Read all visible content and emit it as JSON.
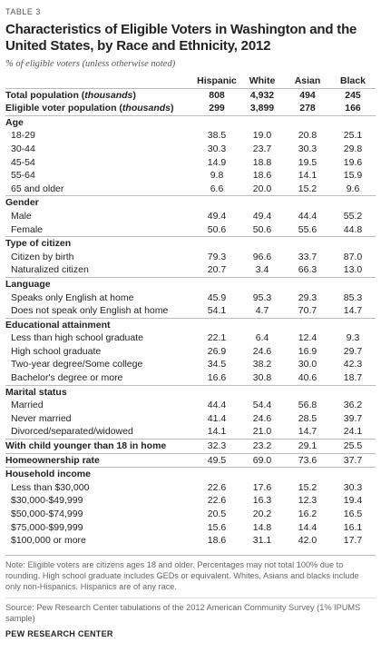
{
  "table_label": "TABLE 3",
  "title": "Characteristics of Eligible Voters in Washington and the United States, by Race and Ethnicity, 2012",
  "subtitle": "% of eligible voters (unless otherwise noted)",
  "columns": [
    "Hispanic",
    "White",
    "Asian",
    "Black"
  ],
  "top_rows": [
    {
      "label_pre": "Total population (",
      "label_em": "thousands",
      "label_post": ")",
      "values": [
        "808",
        "4,932",
        "494",
        "245"
      ]
    },
    {
      "label_pre": "Eligible voter population (",
      "label_em": "thousands",
      "label_post": ")",
      "values": [
        "299",
        "3,899",
        "278",
        "166"
      ]
    }
  ],
  "sections": [
    {
      "title": "Age",
      "rows": [
        {
          "label": "18-29",
          "values": [
            "38.5",
            "19.0",
            "20.8",
            "25.1"
          ]
        },
        {
          "label": "30-44",
          "values": [
            "30.3",
            "23.7",
            "30.3",
            "29.8"
          ]
        },
        {
          "label": "45-54",
          "values": [
            "14.9",
            "18.8",
            "19.5",
            "19.6"
          ]
        },
        {
          "label": "55-64",
          "values": [
            "9.8",
            "18.6",
            "14.1",
            "15.9"
          ]
        },
        {
          "label": "65 and older",
          "values": [
            "6.6",
            "20.0",
            "15.2",
            "9.6"
          ]
        }
      ]
    },
    {
      "title": "Gender",
      "rows": [
        {
          "label": "Male",
          "values": [
            "49.4",
            "49.4",
            "44.4",
            "55.2"
          ]
        },
        {
          "label": "Female",
          "values": [
            "50.6",
            "50.6",
            "55.6",
            "44.8"
          ]
        }
      ]
    },
    {
      "title": "Type of citizen",
      "rows": [
        {
          "label": "Citizen by birth",
          "values": [
            "79.3",
            "96.6",
            "33.7",
            "87.0"
          ]
        },
        {
          "label": "Naturalized citizen",
          "values": [
            "20.7",
            "3.4",
            "66.3",
            "13.0"
          ]
        }
      ]
    },
    {
      "title": "Language",
      "rows": [
        {
          "label": "Speaks only English at home",
          "values": [
            "45.9",
            "95.3",
            "29.3",
            "85.3"
          ]
        },
        {
          "label": "Does not speak only English at home",
          "values": [
            "54.1",
            "4.7",
            "70.7",
            "14.7"
          ]
        }
      ]
    },
    {
      "title": "Educational attainment",
      "rows": [
        {
          "label": "Less than high school graduate",
          "values": [
            "22.1",
            "6.4",
            "12.4",
            "9.3"
          ]
        },
        {
          "label": "High school graduate",
          "values": [
            "26.9",
            "24.6",
            "16.9",
            "29.7"
          ]
        },
        {
          "label": "Two-year degree/Some college",
          "values": [
            "34.5",
            "38.2",
            "30.0",
            "42.3"
          ]
        },
        {
          "label": "Bachelor's degree or more",
          "values": [
            "16.6",
            "30.8",
            "40.6",
            "18.7"
          ]
        }
      ]
    },
    {
      "title": "Marital status",
      "rows": [
        {
          "label": "Married",
          "values": [
            "44.4",
            "54.4",
            "56.8",
            "36.2"
          ]
        },
        {
          "label": "Never married",
          "values": [
            "41.4",
            "24.6",
            "28.5",
            "39.7"
          ]
        },
        {
          "label": "Divorced/separated/widowed",
          "values": [
            "14.1",
            "21.0",
            "14.7",
            "24.1"
          ]
        }
      ]
    }
  ],
  "standalone_rows": [
    {
      "label": "With child younger than 18 in home",
      "values": [
        "32.3",
        "23.2",
        "29.1",
        "25.5"
      ]
    },
    {
      "label": "Homeownership rate",
      "values": [
        "49.5",
        "69.0",
        "73.6",
        "37.7"
      ]
    }
  ],
  "income_section": {
    "title": "Household income",
    "rows": [
      {
        "label": "Less than $30,000",
        "values": [
          "22.6",
          "17.6",
          "15.2",
          "30.3"
        ]
      },
      {
        "label": "$30,000-$49,999",
        "values": [
          "22.6",
          "16.3",
          "12.3",
          "19.4"
        ]
      },
      {
        "label": "$50,000-$74,999",
        "values": [
          "20.5",
          "20.2",
          "16.2",
          "16.5"
        ]
      },
      {
        "label": "$75,000-$99,999",
        "values": [
          "15.6",
          "14.8",
          "14.4",
          "16.1"
        ]
      },
      {
        "label": "$100,000 or more",
        "values": [
          "18.6",
          "31.1",
          "42.0",
          "17.7"
        ]
      }
    ]
  },
  "note": "Note: Eligible voters are citizens ages 18 and older. Percentages may not total 100% due to rounding. High school graduate includes GEDs or equivalent. Whites, Asians and blacks include only non-Hispanics. Hispanics are of any race.",
  "source": "Source: Pew Research Center tabulations of the 2012 American Community Survey (1% IPUMS sample)",
  "footer": "PEW RESEARCH CENTER"
}
